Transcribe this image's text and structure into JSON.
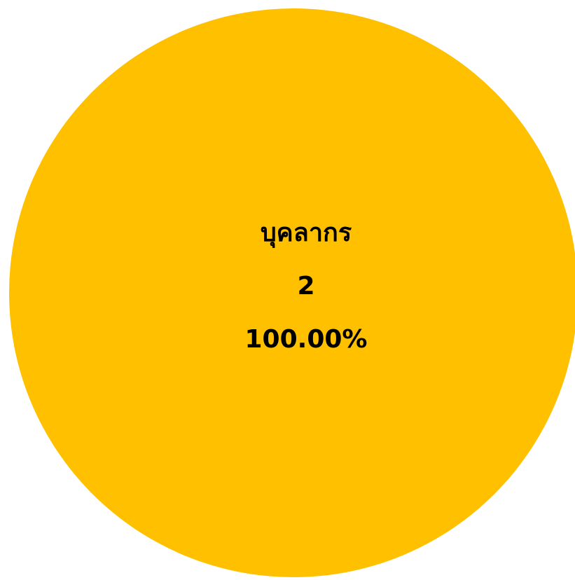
{
  "colors": {
    "background": "#ffffff",
    "slice_fill": "#FFC000",
    "label_text": "#000000"
  },
  "chart_data": {
    "type": "pie",
    "title": "",
    "categories": [
      "บุคลากร"
    ],
    "values": [
      2
    ],
    "percent_labels": [
      "100.00%"
    ],
    "legend": "none",
    "data_labels": "category, value, percent (inside slice)"
  }
}
